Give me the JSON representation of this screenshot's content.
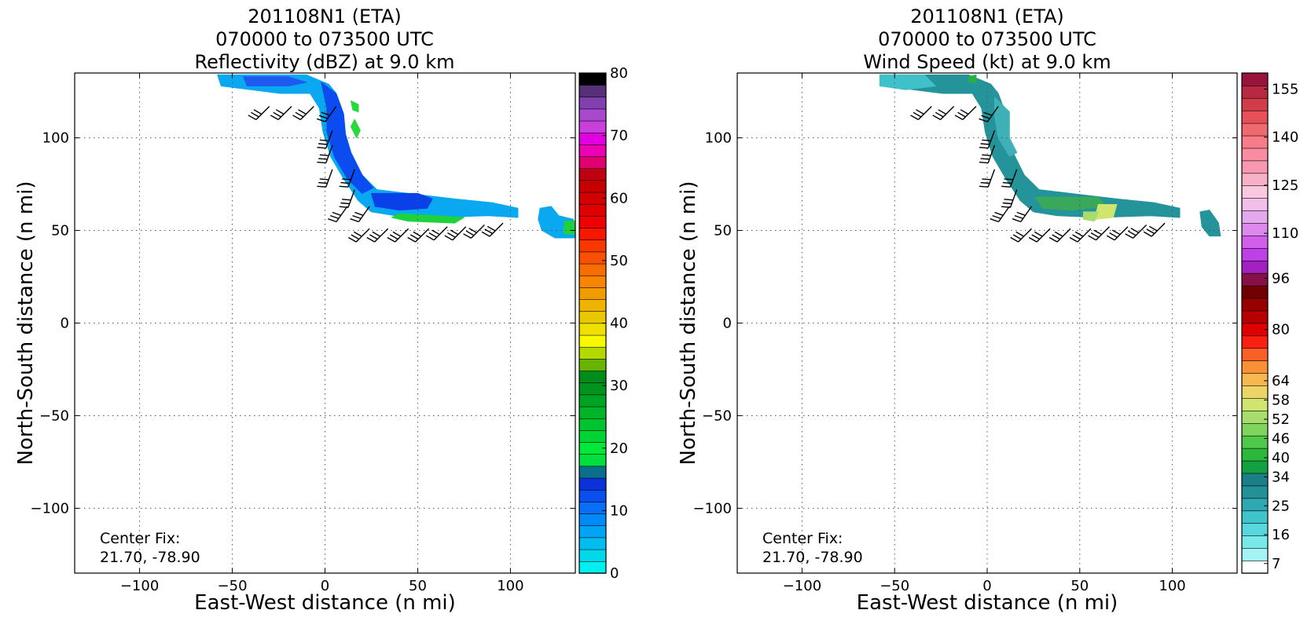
{
  "chart_data": [
    {
      "type": "heatmap",
      "title": [
        "201108N1 (ETA)",
        "070000 to 073500 UTC",
        "Reflectivity (dBZ) at 9.0 km"
      ],
      "xlabel": "East-West distance (n mi)",
      "ylabel": "North-South distance (n mi)",
      "xlim": [
        -135,
        135
      ],
      "ylim": [
        -135,
        135
      ],
      "xticks": [
        -100,
        -50,
        0,
        50,
        100
      ],
      "yticks": [
        -100,
        -50,
        0,
        50,
        100
      ],
      "xtick_labels": [
        "−100",
        "−50",
        "0",
        "50",
        "100"
      ],
      "ytick_labels": [
        "−100",
        "−50",
        "0",
        "50",
        "100"
      ],
      "grid": true,
      "annotation": [
        "Center Fix:",
        "21.70, -78.90"
      ],
      "colorbar": {
        "min": 0,
        "max": 80,
        "ticks": [
          0,
          10,
          20,
          30,
          40,
          50,
          60,
          70,
          80
        ],
        "tick_labels": [
          "0",
          "10",
          "20",
          "30",
          "40",
          "50",
          "60",
          "70",
          "80"
        ],
        "colors": [
          "#00f0f0",
          "#00d8ec",
          "#00bef0",
          "#00a4f4",
          "#008af8",
          "#0a6ef8",
          "#0a4ef0",
          "#0a32d8",
          "#0a6e8c",
          "#00e03c",
          "#00e83a",
          "#00d434",
          "#00c42e",
          "#00b428",
          "#00a424",
          "#00941e",
          "#008c1a",
          "#68b400",
          "#b4d800",
          "#f8f800",
          "#f0e000",
          "#e8c800",
          "#f0b400",
          "#f09c00",
          "#f88400",
          "#f86c00",
          "#f85000",
          "#f83800",
          "#f81800",
          "#f00000",
          "#e00000",
          "#d40000",
          "#c80000",
          "#c00010",
          "#e00070",
          "#ec00b4",
          "#e000e0",
          "#c840dc",
          "#a848cc",
          "#8040b0",
          "#583078",
          "#000000"
        ],
        "top_color": "#000000"
      },
      "field": [
        {
          "name": "band-upper",
          "color": "#0aa8f0",
          "points": [
            [
              -58,
              134
            ],
            [
              -10,
              134
            ],
            [
              2,
              129
            ],
            [
              6,
              124
            ],
            [
              10,
              113
            ],
            [
              11,
              102
            ],
            [
              14,
              92
            ],
            [
              20,
              80
            ],
            [
              28,
              72
            ],
            [
              45,
              70
            ],
            [
              70,
              67
            ],
            [
              90,
              65
            ],
            [
              104,
              62
            ],
            [
              104,
              57
            ],
            [
              88,
              58
            ],
            [
              60,
              57
            ],
            [
              38,
              58
            ],
            [
              25,
              60
            ],
            [
              18,
              66
            ],
            [
              10,
              78
            ],
            [
              3,
              90
            ],
            [
              -1,
              103
            ],
            [
              -3,
              116
            ],
            [
              -8,
              124
            ],
            [
              -24,
              124
            ],
            [
              -40,
              126
            ],
            [
              -56,
              128
            ]
          ]
        },
        {
          "name": "core-1",
          "color": "#0a4cf0",
          "points": [
            [
              -2,
              130
            ],
            [
              6,
              124
            ],
            [
              10,
              113
            ],
            [
              11,
              102
            ],
            [
              14,
              92
            ],
            [
              20,
              80
            ],
            [
              26,
              73
            ],
            [
              20,
              70
            ],
            [
              12,
              78
            ],
            [
              5,
              90
            ],
            [
              1,
              103
            ],
            [
              1,
              116
            ]
          ]
        },
        {
          "name": "core-2",
          "color": "#0a40e8",
          "points": [
            [
              25,
              70
            ],
            [
              50,
              70
            ],
            [
              58,
              67
            ],
            [
              55,
              62
            ],
            [
              40,
              61
            ],
            [
              27,
              63
            ]
          ]
        },
        {
          "name": "core-3",
          "color": "#1e5af0",
          "points": [
            [
              -44,
              133
            ],
            [
              -20,
              133
            ],
            [
              -10,
              130
            ],
            [
              -20,
              128
            ],
            [
              -42,
              128
            ]
          ]
        },
        {
          "name": "green-1",
          "color": "#1ed23c",
          "points": [
            [
              36,
              57
            ],
            [
              45,
              55
            ],
            [
              70,
              54
            ],
            [
              75,
              57
            ],
            [
              60,
              58
            ],
            [
              40,
              59
            ]
          ]
        },
        {
          "name": "green-2",
          "color": "#28d83c",
          "points": [
            [
              14,
              120
            ],
            [
              18,
              118
            ],
            [
              18,
              114
            ],
            [
              15,
              115
            ]
          ]
        },
        {
          "name": "green-3",
          "color": "#28d83c",
          "points": [
            [
              16,
              110
            ],
            [
              19,
              104
            ],
            [
              17,
              100
            ],
            [
              14,
              106
            ]
          ]
        },
        {
          "name": "blob-east",
          "color": "#0aa8f0",
          "points": [
            [
              116,
              62
            ],
            [
              122,
              63
            ],
            [
              126,
              58
            ],
            [
              134,
              56
            ],
            [
              135,
              46
            ],
            [
              124,
              46
            ],
            [
              117,
              50
            ],
            [
              115,
              56
            ]
          ]
        },
        {
          "name": "blob-east-green",
          "color": "#1ed23c",
          "points": [
            [
              129,
              55
            ],
            [
              135,
              55
            ],
            [
              135,
              48
            ],
            [
              129,
              48
            ]
          ]
        }
      ],
      "barbs": [
        {
          "x": -30,
          "y": 117,
          "dir": 225,
          "flags": 3
        },
        {
          "x": -18,
          "y": 117,
          "dir": 225,
          "flags": 3
        },
        {
          "x": -6,
          "y": 117,
          "dir": 225,
          "flags": 3
        },
        {
          "x": 6,
          "y": 117,
          "dir": 215,
          "flags": 3
        },
        {
          "x": 4,
          "y": 104,
          "dir": 200,
          "flags": 3
        },
        {
          "x": 4,
          "y": 96,
          "dir": 200,
          "flags": 3
        },
        {
          "x": 4,
          "y": 83,
          "dir": 200,
          "flags": 3
        },
        {
          "x": 16,
          "y": 83,
          "dir": 200,
          "flags": 3
        },
        {
          "x": 16,
          "y": 72,
          "dir": 200,
          "flags": 3
        },
        {
          "x": 12,
          "y": 63,
          "dir": 215,
          "flags": 3
        },
        {
          "x": 24,
          "y": 63,
          "dir": 215,
          "flags": 3
        },
        {
          "x": 24,
          "y": 51,
          "dir": 225,
          "flags": 3
        },
        {
          "x": 34,
          "y": 51,
          "dir": 225,
          "flags": 3
        },
        {
          "x": 45,
          "y": 51,
          "dir": 225,
          "flags": 3
        },
        {
          "x": 56,
          "y": 51,
          "dir": 225,
          "flags": 3
        },
        {
          "x": 66,
          "y": 52,
          "dir": 225,
          "flags": 3
        },
        {
          "x": 76,
          "y": 52,
          "dir": 225,
          "flags": 3
        },
        {
          "x": 86,
          "y": 53,
          "dir": 225,
          "flags": 3
        },
        {
          "x": 96,
          "y": 54,
          "dir": 225,
          "flags": 3
        }
      ]
    },
    {
      "type": "heatmap",
      "title": [
        "201108N1 (ETA)",
        "070000 to 073500 UTC",
        "Wind Speed (kt) at 9.0 km"
      ],
      "xlabel": "East-West distance (n mi)",
      "ylabel": "North-South distance (n mi)",
      "xlim": [
        -135,
        135
      ],
      "ylim": [
        -135,
        135
      ],
      "xticks": [
        -100,
        -50,
        0,
        50,
        100
      ],
      "yticks": [
        -100,
        -50,
        0,
        50,
        100
      ],
      "xtick_labels": [
        "−100",
        "−50",
        "0",
        "50",
        "100"
      ],
      "ytick_labels": [
        "−100",
        "−50",
        "0",
        "50",
        "100"
      ],
      "grid": true,
      "annotation": [
        "Center Fix:",
        "21.70, -78.90"
      ],
      "colorbar": {
        "min": 4,
        "max": 160,
        "ticks": [
          7,
          16,
          25,
          34,
          40,
          46,
          52,
          58,
          64,
          80,
          96,
          110,
          125,
          140,
          155
        ],
        "tick_labels": [
          "7",
          "16",
          "25",
          "34",
          "40",
          "46",
          "52",
          "58",
          "64",
          "80",
          "96",
          "110",
          "125",
          "140",
          "155"
        ],
        "colors": [
          "#ffffff",
          "#a4f4f4",
          "#78e8e8",
          "#58d8dc",
          "#40c4cc",
          "#30a8b4",
          "#249098",
          "#1a8088",
          "#12a040",
          "#2cb83c",
          "#50c84a",
          "#7ed45c",
          "#a8dc6c",
          "#d0e470",
          "#eed468",
          "#f8b850",
          "#f89038",
          "#f86028",
          "#f82010",
          "#e00000",
          "#b80000",
          "#980000",
          "#700000",
          "#881048",
          "#a020c0",
          "#c040e8",
          "#d060ec",
          "#dc88ec",
          "#e4a8ec",
          "#f0c0e8",
          "#f8c8e0",
          "#f8b0c8",
          "#f898b0",
          "#f88ca0",
          "#f87c88",
          "#f06870",
          "#e85058",
          "#d03c48",
          "#b82840",
          "#98143c"
        ],
        "top_color": "#98143c"
      },
      "field": [
        {
          "name": "band-main",
          "color": "#24949a",
          "points": [
            [
              -58,
              134
            ],
            [
              -10,
              134
            ],
            [
              2,
              129
            ],
            [
              6,
              124
            ],
            [
              10,
              113
            ],
            [
              11,
              102
            ],
            [
              14,
              92
            ],
            [
              20,
              80
            ],
            [
              28,
              72
            ],
            [
              45,
              70
            ],
            [
              70,
              67
            ],
            [
              90,
              65
            ],
            [
              104,
              62
            ],
            [
              104,
              57
            ],
            [
              88,
              58
            ],
            [
              60,
              57
            ],
            [
              38,
              58
            ],
            [
              25,
              60
            ],
            [
              18,
              66
            ],
            [
              10,
              78
            ],
            [
              3,
              90
            ],
            [
              -1,
              103
            ],
            [
              -3,
              116
            ],
            [
              -8,
              124
            ],
            [
              -24,
              124
            ],
            [
              -40,
              126
            ],
            [
              -56,
              128
            ]
          ]
        },
        {
          "name": "light-west",
          "color": "#40c0c8",
          "points": [
            [
              -58,
              134
            ],
            [
              -34,
              134
            ],
            [
              -28,
              128
            ],
            [
              -44,
              126
            ],
            [
              -58,
              128
            ]
          ]
        },
        {
          "name": "light-north",
          "color": "#40b0b8",
          "points": [
            [
              4,
              122
            ],
            [
              12,
              114
            ],
            [
              12,
              100
            ],
            [
              16,
              92
            ],
            [
              12,
              90
            ],
            [
              6,
              100
            ],
            [
              4,
              112
            ]
          ]
        },
        {
          "name": "green-tip",
          "color": "#28b040",
          "points": [
            [
              -10,
              133
            ],
            [
              -6,
              134
            ],
            [
              -6,
              130
            ],
            [
              -10,
              130
            ]
          ]
        },
        {
          "name": "green-band",
          "color": "#3aa85a",
          "points": [
            [
              26,
              68
            ],
            [
              60,
              68
            ],
            [
              64,
              63
            ],
            [
              46,
              61
            ],
            [
              30,
              62
            ]
          ]
        },
        {
          "name": "yellow-patch",
          "color": "#d0e470",
          "points": [
            [
              60,
              64
            ],
            [
              70,
              64
            ],
            [
              68,
              57
            ],
            [
              58,
              56
            ]
          ]
        },
        {
          "name": "lightgreen-patch",
          "color": "#a8dc6c",
          "points": [
            [
              52,
              60
            ],
            [
              60,
              60
            ],
            [
              58,
              55
            ],
            [
              52,
              56
            ]
          ]
        },
        {
          "name": "blob-east",
          "color": "#24949a",
          "points": [
            [
              115,
              60
            ],
            [
              120,
              61
            ],
            [
              125,
              54
            ],
            [
              126,
              47
            ],
            [
              120,
              47
            ],
            [
              116,
              52
            ]
          ]
        }
      ],
      "barbs": [
        {
          "x": -30,
          "y": 117,
          "dir": 225,
          "flags": 3
        },
        {
          "x": -18,
          "y": 117,
          "dir": 225,
          "flags": 3
        },
        {
          "x": -6,
          "y": 117,
          "dir": 225,
          "flags": 3
        },
        {
          "x": 6,
          "y": 117,
          "dir": 215,
          "flags": 3
        },
        {
          "x": 4,
          "y": 104,
          "dir": 200,
          "flags": 3
        },
        {
          "x": 4,
          "y": 96,
          "dir": 200,
          "flags": 3
        },
        {
          "x": 4,
          "y": 83,
          "dir": 200,
          "flags": 3
        },
        {
          "x": 16,
          "y": 83,
          "dir": 200,
          "flags": 3
        },
        {
          "x": 16,
          "y": 72,
          "dir": 200,
          "flags": 3
        },
        {
          "x": 12,
          "y": 63,
          "dir": 215,
          "flags": 3
        },
        {
          "x": 24,
          "y": 63,
          "dir": 215,
          "flags": 3
        },
        {
          "x": 24,
          "y": 51,
          "dir": 225,
          "flags": 3
        },
        {
          "x": 34,
          "y": 51,
          "dir": 225,
          "flags": 3
        },
        {
          "x": 45,
          "y": 51,
          "dir": 225,
          "flags": 3
        },
        {
          "x": 56,
          "y": 51,
          "dir": 225,
          "flags": 3
        },
        {
          "x": 66,
          "y": 52,
          "dir": 225,
          "flags": 3
        },
        {
          "x": 76,
          "y": 52,
          "dir": 225,
          "flags": 3
        },
        {
          "x": 86,
          "y": 53,
          "dir": 225,
          "flags": 3
        },
        {
          "x": 96,
          "y": 54,
          "dir": 225,
          "flags": 3
        }
      ]
    }
  ]
}
